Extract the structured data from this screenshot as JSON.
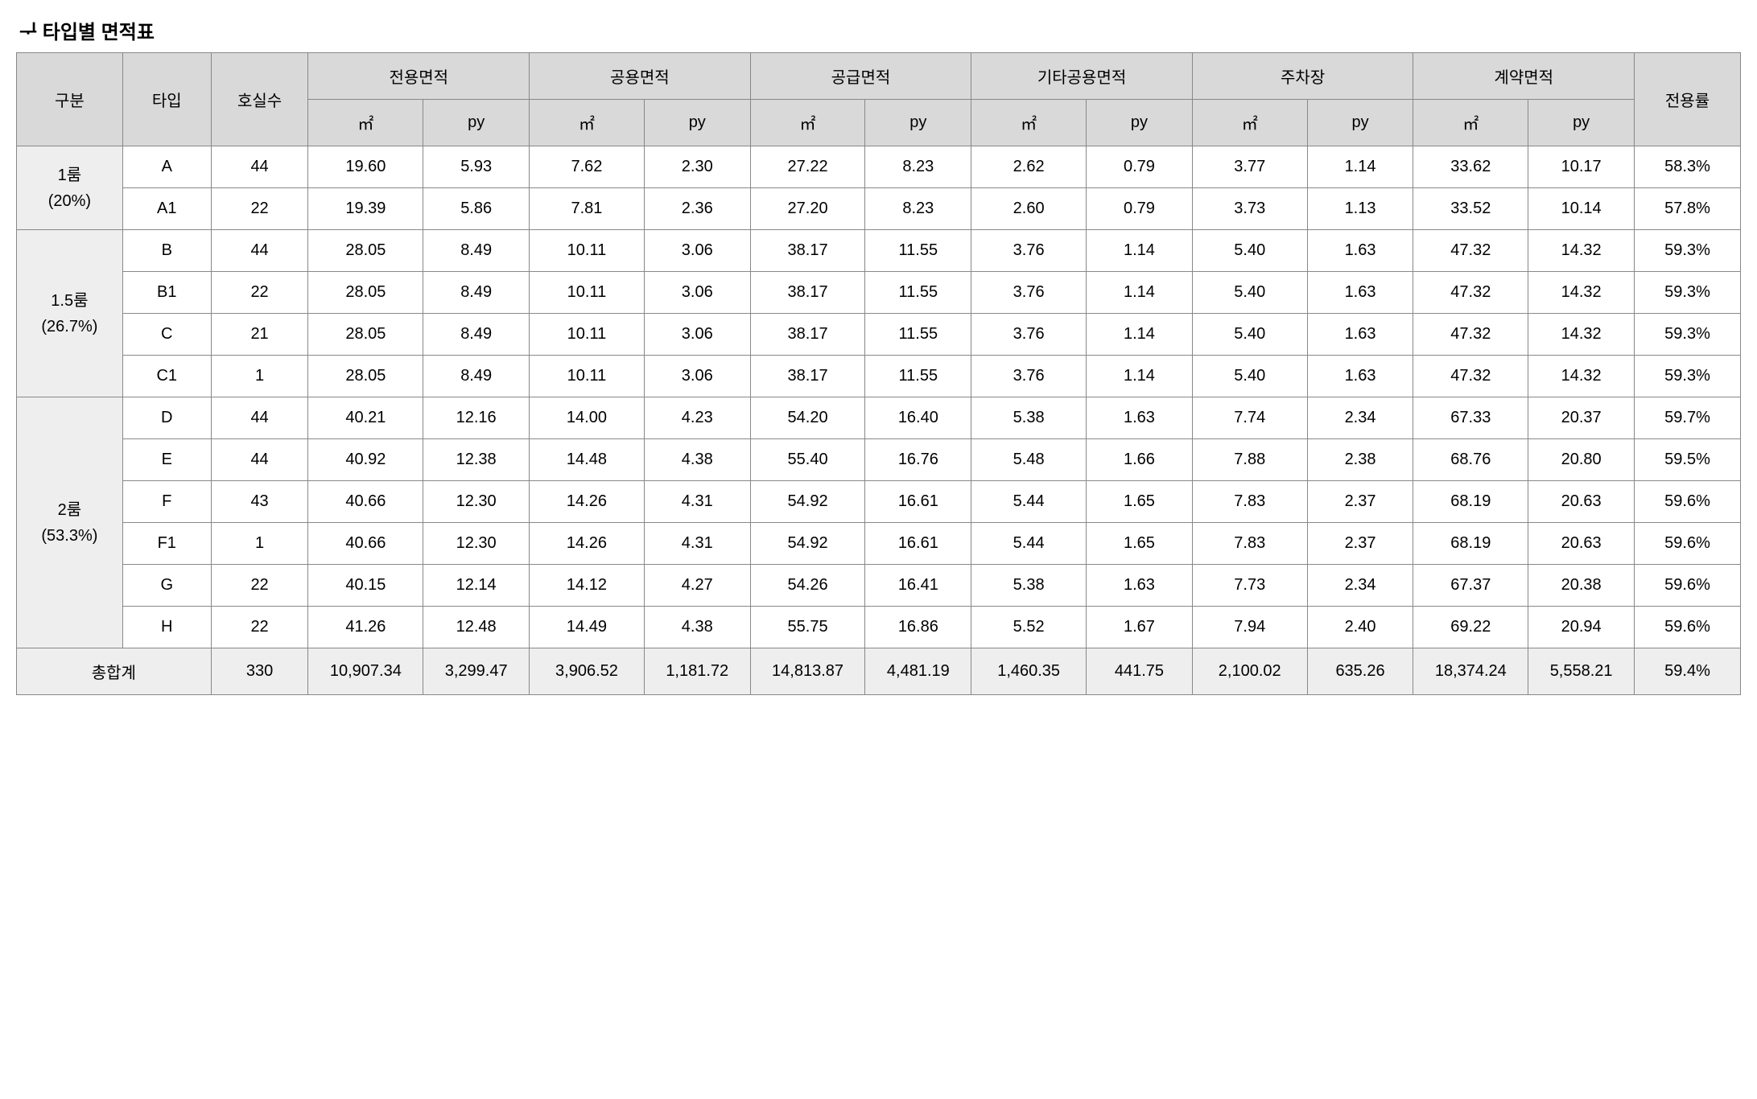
{
  "title": "ᆛ 타입별 면적표",
  "header": {
    "gubun": "구분",
    "type": "타입",
    "rooms": "호실수",
    "exclusive": "전용면적",
    "common": "공용면적",
    "supply": "공급면적",
    "otherCommon": "기타공용면적",
    "parking": "주차장",
    "contract": "계약면적",
    "ratio": "전용률",
    "m2": "㎡",
    "py": "py"
  },
  "groups": [
    {
      "label_line1": "1룸",
      "label_line2": "(20%)",
      "rowspan": 2
    },
    {
      "label_line1": "1.5룸",
      "label_line2": "(26.7%)",
      "rowspan": 4
    },
    {
      "label_line1": "2룸",
      "label_line2": "(53.3%)",
      "rowspan": 6
    }
  ],
  "rows": [
    {
      "g": 0,
      "type": "A",
      "rooms": "44",
      "v": [
        "19.60",
        "5.93",
        "7.62",
        "2.30",
        "27.22",
        "8.23",
        "2.62",
        "0.79",
        "3.77",
        "1.14",
        "33.62",
        "10.17",
        "58.3%"
      ]
    },
    {
      "g": 0,
      "type": "A1",
      "rooms": "22",
      "v": [
        "19.39",
        "5.86",
        "7.81",
        "2.36",
        "27.20",
        "8.23",
        "2.60",
        "0.79",
        "3.73",
        "1.13",
        "33.52",
        "10.14",
        "57.8%"
      ]
    },
    {
      "g": 1,
      "type": "B",
      "rooms": "44",
      "v": [
        "28.05",
        "8.49",
        "10.11",
        "3.06",
        "38.17",
        "11.55",
        "3.76",
        "1.14",
        "5.40",
        "1.63",
        "47.32",
        "14.32",
        "59.3%"
      ]
    },
    {
      "g": 1,
      "type": "B1",
      "rooms": "22",
      "v": [
        "28.05",
        "8.49",
        "10.11",
        "3.06",
        "38.17",
        "11.55",
        "3.76",
        "1.14",
        "5.40",
        "1.63",
        "47.32",
        "14.32",
        "59.3%"
      ]
    },
    {
      "g": 1,
      "type": "C",
      "rooms": "21",
      "v": [
        "28.05",
        "8.49",
        "10.11",
        "3.06",
        "38.17",
        "11.55",
        "3.76",
        "1.14",
        "5.40",
        "1.63",
        "47.32",
        "14.32",
        "59.3%"
      ]
    },
    {
      "g": 1,
      "type": "C1",
      "rooms": "1",
      "v": [
        "28.05",
        "8.49",
        "10.11",
        "3.06",
        "38.17",
        "11.55",
        "3.76",
        "1.14",
        "5.40",
        "1.63",
        "47.32",
        "14.32",
        "59.3%"
      ]
    },
    {
      "g": 2,
      "type": "D",
      "rooms": "44",
      "v": [
        "40.21",
        "12.16",
        "14.00",
        "4.23",
        "54.20",
        "16.40",
        "5.38",
        "1.63",
        "7.74",
        "2.34",
        "67.33",
        "20.37",
        "59.7%"
      ]
    },
    {
      "g": 2,
      "type": "E",
      "rooms": "44",
      "v": [
        "40.92",
        "12.38",
        "14.48",
        "4.38",
        "55.40",
        "16.76",
        "5.48",
        "1.66",
        "7.88",
        "2.38",
        "68.76",
        "20.80",
        "59.5%"
      ]
    },
    {
      "g": 2,
      "type": "F",
      "rooms": "43",
      "v": [
        "40.66",
        "12.30",
        "14.26",
        "4.31",
        "54.92",
        "16.61",
        "5.44",
        "1.65",
        "7.83",
        "2.37",
        "68.19",
        "20.63",
        "59.6%"
      ]
    },
    {
      "g": 2,
      "type": "F1",
      "rooms": "1",
      "v": [
        "40.66",
        "12.30",
        "14.26",
        "4.31",
        "54.92",
        "16.61",
        "5.44",
        "1.65",
        "7.83",
        "2.37",
        "68.19",
        "20.63",
        "59.6%"
      ]
    },
    {
      "g": 2,
      "type": "G",
      "rooms": "22",
      "v": [
        "40.15",
        "12.14",
        "14.12",
        "4.27",
        "54.26",
        "16.41",
        "5.38",
        "1.63",
        "7.73",
        "2.34",
        "67.37",
        "20.38",
        "59.6%"
      ]
    },
    {
      "g": 2,
      "type": "H",
      "rooms": "22",
      "v": [
        "41.26",
        "12.48",
        "14.49",
        "4.38",
        "55.75",
        "16.86",
        "5.52",
        "1.67",
        "7.94",
        "2.40",
        "69.22",
        "20.94",
        "59.6%"
      ]
    }
  ],
  "total": {
    "label": "총합계",
    "rooms": "330",
    "v": [
      "10,907.34",
      "3,299.47",
      "3,906.52",
      "1,181.72",
      "14,813.87",
      "4,481.19",
      "1,460.35",
      "441.75",
      "2,100.02",
      "635.26",
      "18,374.24",
      "5,558.21",
      "59.4%"
    ]
  },
  "style": {
    "header_bg": "#d9d9d9",
    "group_bg": "#eeeeee",
    "border_color": "#888888",
    "text_color": "#000000",
    "font_size_cell": 20,
    "font_size_title": 24
  }
}
